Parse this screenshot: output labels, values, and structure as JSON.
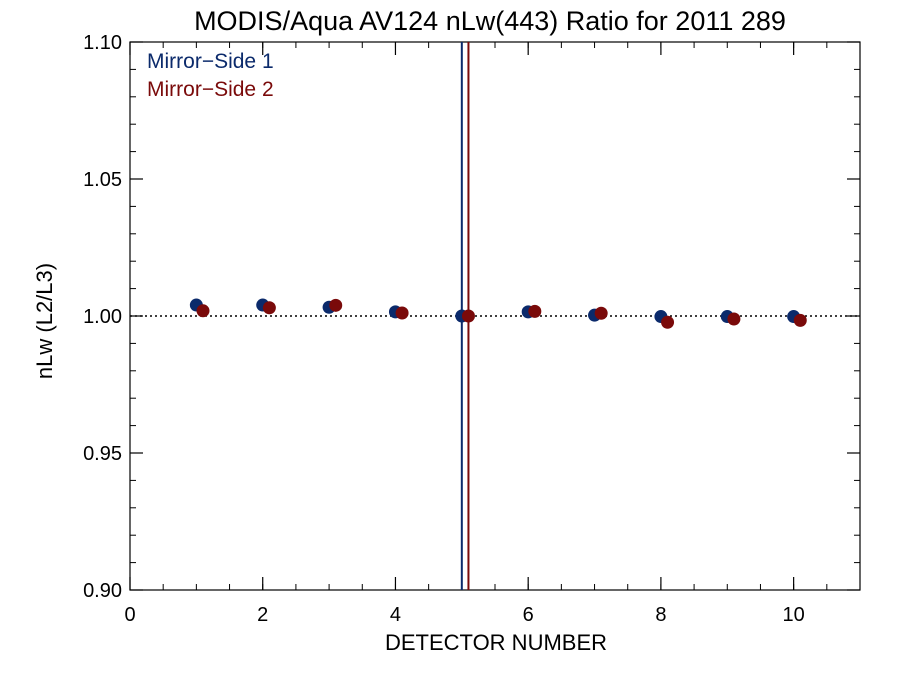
{
  "chart_data": {
    "type": "scatter",
    "title": "MODIS/Aqua AV124 nLw(443) Ratio for 2011 289",
    "xlabel": "DETECTOR NUMBER",
    "ylabel": "nLw (L2/L3)",
    "xlim": [
      0,
      11
    ],
    "ylim": [
      0.9,
      1.1
    ],
    "x_ticks": [
      0,
      2,
      4,
      6,
      8,
      10
    ],
    "y_ticks": [
      0.9,
      0.95,
      1.0,
      1.05,
      1.1
    ],
    "x_tick_labels": [
      "0",
      "2",
      "4",
      "6",
      "8",
      "10"
    ],
    "y_tick_labels": [
      "0.90",
      "0.95",
      "1.00",
      "1.05",
      "1.10"
    ],
    "x_minor_step": 0.5,
    "y_minor_step": 0.01,
    "reference_line": {
      "y": 1.0,
      "style": "dotted",
      "color": "#000000"
    },
    "vertical_lines": [
      {
        "x": 5.0,
        "color": "#0b2a6b"
      },
      {
        "x": 5.1,
        "color": "#7a0a0a"
      }
    ],
    "legend_position": "top-left",
    "series": [
      {
        "name": "Mirror−Side 1",
        "color": "#0b2a6b",
        "x": [
          1,
          2,
          3,
          4,
          5,
          6,
          7,
          8,
          9,
          10
        ],
        "y": [
          1.004,
          1.004,
          1.0032,
          1.0015,
          1.0,
          1.0015,
          1.0003,
          0.9998,
          0.9998,
          0.9998
        ]
      },
      {
        "name": "Mirror−Side 2",
        "color": "#7a0a0a",
        "x": [
          1.1,
          2.1,
          3.1,
          4.1,
          5.1,
          6.1,
          7.1,
          8.1,
          9.1,
          10.1
        ],
        "y": [
          1.0019,
          1.003,
          1.0039,
          1.0011,
          1.0,
          1.0017,
          1.001,
          0.9977,
          0.9989,
          0.9984
        ]
      }
    ]
  }
}
